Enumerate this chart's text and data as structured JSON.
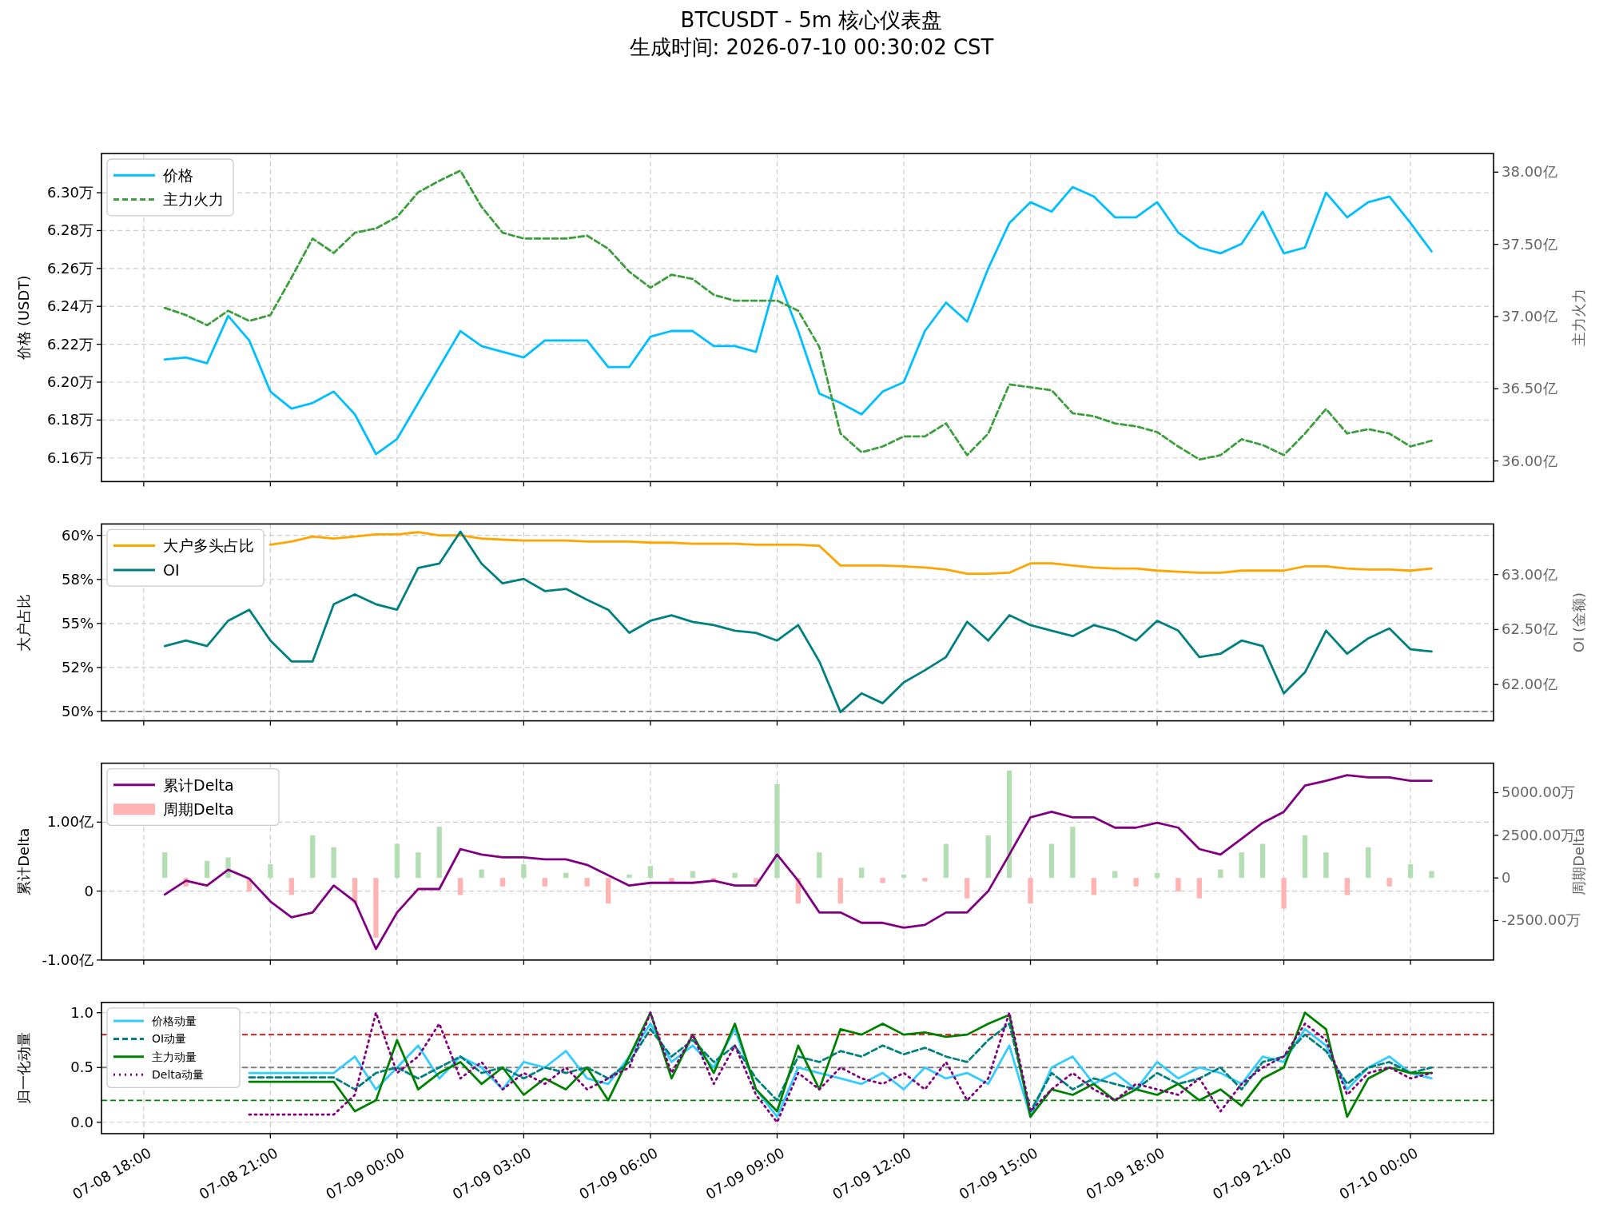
{
  "chart_data": [
    {
      "type": "line",
      "title": "BTCUSDT - 5m 核心仪表盘",
      "subtitle": "生成时间: 2026-07-10 00:30:02 CST",
      "x": [
        "2026-07-08T18:30",
        "2026-07-08T19:00",
        "2026-07-08T19:30",
        "2026-07-08T20:00",
        "2026-07-08T20:30",
        "2026-07-08T21:00",
        "2026-07-08T21:30",
        "2026-07-08T22:00",
        "2026-07-08T22:30",
        "2026-07-08T23:00",
        "2026-07-08T23:30",
        "2026-07-09T00:00",
        "2026-07-09T00:30",
        "2026-07-09T01:00",
        "2026-07-09T01:30",
        "2026-07-09T02:00",
        "2026-07-09T02:30",
        "2026-07-09T03:00",
        "2026-07-09T03:30",
        "2026-07-09T04:00",
        "2026-07-09T04:30",
        "2026-07-09T05:00",
        "2026-07-09T05:30",
        "2026-07-09T06:00",
        "2026-07-09T06:30",
        "2026-07-09T07:00",
        "2026-07-09T07:30",
        "2026-07-09T08:00",
        "2026-07-09T08:30",
        "2026-07-09T09:00",
        "2026-07-09T09:30",
        "2026-07-09T10:00",
        "2026-07-09T10:30",
        "2026-07-09T11:00",
        "2026-07-09T11:30",
        "2026-07-09T12:00",
        "2026-07-09T12:30",
        "2026-07-09T13:00",
        "2026-07-09T13:30",
        "2026-07-09T14:00",
        "2026-07-09T14:30",
        "2026-07-09T15:00",
        "2026-07-09T15:30",
        "2026-07-09T16:00",
        "2026-07-09T16:30",
        "2026-07-09T17:00",
        "2026-07-09T17:30",
        "2026-07-09T18:00",
        "2026-07-09T18:30",
        "2026-07-09T19:00",
        "2026-07-09T19:30",
        "2026-07-09T20:00",
        "2026-07-09T20:30",
        "2026-07-09T21:00",
        "2026-07-09T21:30",
        "2026-07-09T22:00",
        "2026-07-09T22:30",
        "2026-07-09T23:00",
        "2026-07-09T23:30",
        "2026-07-10T00:00",
        "2026-07-10T00:30"
      ],
      "xlim": [
        "2026-07-08T17:00",
        "2026-07-10T01:58"
      ],
      "xticks": [
        {
          "value": "2026-07-08T18:00",
          "label": null
        },
        {
          "value": "2026-07-08T21:00",
          "label": null
        },
        {
          "value": "2026-07-09T00:00",
          "label": null
        },
        {
          "value": "2026-07-09T03:00",
          "label": null
        },
        {
          "value": "2026-07-09T06:00",
          "label": null
        },
        {
          "value": "2026-07-09T09:00",
          "label": null
        },
        {
          "value": "2026-07-09T12:00",
          "label": null
        },
        {
          "value": "2026-07-09T15:00",
          "label": null
        },
        {
          "value": "2026-07-09T18:00",
          "label": null
        },
        {
          "value": "2026-07-09T21:00",
          "label": null
        },
        {
          "value": "2026-07-10T00:00",
          "label": null
        }
      ],
      "ylabel": "价格 (USDT)",
      "y2label": "主力火力",
      "ylim": [
        6.1475,
        6.3207
      ],
      "yticks": [
        {
          "value": 6.16,
          "label": "6.16万"
        },
        {
          "value": 6.18,
          "label": "6.18万"
        },
        {
          "value": 6.2,
          "label": "6.20万"
        },
        {
          "value": 6.22,
          "label": "6.22万"
        },
        {
          "value": 6.24,
          "label": "6.24万"
        },
        {
          "value": 6.26,
          "label": "6.26万"
        },
        {
          "value": 6.28,
          "label": "6.28万"
        },
        {
          "value": 6.3,
          "label": "6.30万"
        }
      ],
      "y2lim": [
        35.857,
        38.129
      ],
      "y2ticks": [
        {
          "value": 36,
          "label": "36.00亿"
        },
        {
          "value": 36.5,
          "label": "36.50亿"
        },
        {
          "value": 37,
          "label": "37.00亿"
        },
        {
          "value": 37.5,
          "label": "37.50亿"
        },
        {
          "value": 38,
          "label": "38.00亿"
        }
      ],
      "grid": true,
      "legend": "top left",
      "tick_labels": "y",
      "series": [
        {
          "name": "价格",
          "color": "#00bfff",
          "values": [
            6.212,
            6.213,
            6.21,
            6.235,
            6.222,
            6.195,
            6.186,
            6.189,
            6.195,
            6.183,
            6.162,
            6.17,
            6.189,
            6.208,
            6.227,
            6.219,
            6.216,
            6.213,
            6.222,
            6.222,
            6.222,
            6.208,
            6.208,
            6.224,
            6.227,
            6.227,
            6.219,
            6.219,
            6.216,
            6.256,
            6.227,
            6.194,
            6.189,
            6.183,
            6.195,
            6.2,
            6.227,
            6.242,
            6.232,
            6.26,
            6.284,
            6.295,
            6.29,
            6.303,
            6.298,
            6.287,
            6.287,
            6.295,
            6.279,
            6.271,
            6.268,
            6.273,
            6.29,
            6.268,
            6.271,
            6.3,
            6.287,
            6.295,
            6.298,
            6.284,
            6.269
          ]
        },
        {
          "name": "主力火力",
          "color": "#3c9e3c",
          "axis": "y2",
          "line_style": "dashed",
          "values": [
            37.06,
            37.01,
            36.94,
            37.04,
            36.97,
            37.01,
            37.27,
            37.54,
            37.44,
            37.58,
            37.61,
            37.69,
            37.86,
            37.94,
            38.01,
            37.76,
            37.58,
            37.54,
            37.54,
            37.54,
            37.56,
            37.47,
            37.31,
            37.2,
            37.29,
            37.26,
            37.15,
            37.11,
            37.11,
            37.11,
            37.04,
            36.79,
            36.19,
            36.06,
            36.1,
            36.17,
            36.17,
            36.26,
            36.04,
            36.19,
            36.53,
            36.51,
            36.49,
            36.33,
            36.31,
            36.26,
            36.24,
            36.2,
            36.1,
            36.01,
            36.04,
            36.15,
            36.11,
            36.04,
            36.19,
            36.36,
            36.19,
            36.22,
            36.19,
            36.1,
            36.14
          ]
        }
      ]
    },
    {
      "type": "line",
      "x": [
        "2026-07-08T18:30",
        "2026-07-08T19:00",
        "2026-07-08T19:30",
        "2026-07-08T20:00",
        "2026-07-08T20:30",
        "2026-07-08T21:00",
        "2026-07-08T21:30",
        "2026-07-08T22:00",
        "2026-07-08T22:30",
        "2026-07-08T23:00",
        "2026-07-08T23:30",
        "2026-07-09T00:00",
        "2026-07-09T00:30",
        "2026-07-09T01:00",
        "2026-07-09T01:30",
        "2026-07-09T02:00",
        "2026-07-09T02:30",
        "2026-07-09T03:00",
        "2026-07-09T03:30",
        "2026-07-09T04:00",
        "2026-07-09T04:30",
        "2026-07-09T05:00",
        "2026-07-09T05:30",
        "2026-07-09T06:00",
        "2026-07-09T06:30",
        "2026-07-09T07:00",
        "2026-07-09T07:30",
        "2026-07-09T08:00",
        "2026-07-09T08:30",
        "2026-07-09T09:00",
        "2026-07-09T09:30",
        "2026-07-09T10:00",
        "2026-07-09T10:30",
        "2026-07-09T11:00",
        "2026-07-09T11:30",
        "2026-07-09T12:00",
        "2026-07-09T12:30",
        "2026-07-09T13:00",
        "2026-07-09T13:30",
        "2026-07-09T14:00",
        "2026-07-09T14:30",
        "2026-07-09T15:00",
        "2026-07-09T15:30",
        "2026-07-09T16:00",
        "2026-07-09T16:30",
        "2026-07-09T17:00",
        "2026-07-09T17:30",
        "2026-07-09T18:00",
        "2026-07-09T18:30",
        "2026-07-09T19:00",
        "2026-07-09T19:30",
        "2026-07-09T20:00",
        "2026-07-09T20:30",
        "2026-07-09T21:00",
        "2026-07-09T21:30",
        "2026-07-09T22:00",
        "2026-07-09T22:30",
        "2026-07-09T23:00",
        "2026-07-09T23:30",
        "2026-07-10T00:00",
        "2026-07-10T00:30"
      ],
      "xlim": [
        "2026-07-08T17:00",
        "2026-07-10T01:58"
      ],
      "xticks": [
        {
          "value": "2026-07-08T18:00",
          "label": null
        },
        {
          "value": "2026-07-08T21:00",
          "label": null
        },
        {
          "value": "2026-07-09T00:00",
          "label": null
        },
        {
          "value": "2026-07-09T03:00",
          "label": null
        },
        {
          "value": "2026-07-09T06:00",
          "label": null
        },
        {
          "value": "2026-07-09T09:00",
          "label": null
        },
        {
          "value": "2026-07-09T12:00",
          "label": null
        },
        {
          "value": "2026-07-09T15:00",
          "label": null
        },
        {
          "value": "2026-07-09T18:00",
          "label": null
        },
        {
          "value": "2026-07-09T21:00",
          "label": null
        },
        {
          "value": "2026-07-10T00:00",
          "label": null
        }
      ],
      "ylabel": "大户占比",
      "y2label": "OI (金额)",
      "ylim": [
        49.47,
        60.65
      ],
      "yticks": [
        {
          "value": 50,
          "label": "50%"
        },
        {
          "value": 52.5,
          "label": "52%"
        },
        {
          "value": 55,
          "label": "55%"
        },
        {
          "value": 57.5,
          "label": "58%"
        },
        {
          "value": 60,
          "label": "60%"
        }
      ],
      "y2lim": [
        61.67,
        63.46
      ],
      "y2ticks": [
        {
          "value": 62,
          "label": "62.00亿"
        },
        {
          "value": 62.5,
          "label": "62.50亿"
        },
        {
          "value": 63,
          "label": "63.00亿"
        }
      ],
      "grid": true,
      "legend": "top left",
      "tick_labels": "y",
      "ref_lines": [
        {
          "axis": "y",
          "value": 50,
          "color": "#808080",
          "line_style": "dashed"
        }
      ],
      "series": [
        {
          "name": "大户多头占比",
          "color": "#ffa500",
          "values": [
            null,
            null,
            null,
            null,
            null,
            59.47,
            59.65,
            59.94,
            59.82,
            59.94,
            60.06,
            60.06,
            60.18,
            60.0,
            60.0,
            59.82,
            59.76,
            59.71,
            59.71,
            59.71,
            59.65,
            59.65,
            59.65,
            59.59,
            59.59,
            59.53,
            59.53,
            59.53,
            59.47,
            59.47,
            59.47,
            59.41,
            58.29,
            58.29,
            58.29,
            58.24,
            58.18,
            58.06,
            57.82,
            57.82,
            57.88,
            58.41,
            58.41,
            58.29,
            58.18,
            58.12,
            58.12,
            58.0,
            57.94,
            57.88,
            57.88,
            58.0,
            58.0,
            58.0,
            58.24,
            58.24,
            58.12,
            58.06,
            58.06,
            58.0,
            58.12
          ]
        },
        {
          "name": "OI",
          "color": "#008080",
          "axis": "y2",
          "values": [
            62.35,
            62.4,
            62.35,
            62.58,
            62.68,
            62.4,
            62.21,
            62.21,
            62.73,
            62.82,
            62.73,
            62.68,
            63.06,
            63.1,
            63.39,
            63.1,
            62.92,
            62.96,
            62.85,
            62.87,
            62.77,
            62.68,
            62.47,
            62.58,
            62.63,
            62.57,
            62.54,
            62.49,
            62.47,
            62.4,
            62.54,
            62.21,
            61.75,
            61.92,
            61.83,
            62.02,
            62.13,
            62.25,
            62.57,
            62.4,
            62.63,
            62.54,
            62.49,
            62.44,
            62.54,
            62.49,
            62.4,
            62.58,
            62.49,
            62.25,
            62.28,
            62.4,
            62.35,
            61.92,
            62.11,
            62.49,
            62.28,
            62.42,
            62.51,
            62.32,
            62.3
          ]
        }
      ]
    },
    {
      "type": "line",
      "x": [
        "2026-07-08T18:30",
        "2026-07-08T19:00",
        "2026-07-08T19:30",
        "2026-07-08T20:00",
        "2026-07-08T20:30",
        "2026-07-08T21:00",
        "2026-07-08T21:30",
        "2026-07-08T22:00",
        "2026-07-08T22:30",
        "2026-07-08T23:00",
        "2026-07-08T23:30",
        "2026-07-09T00:00",
        "2026-07-09T00:30",
        "2026-07-09T01:00",
        "2026-07-09T01:30",
        "2026-07-09T02:00",
        "2026-07-09T02:30",
        "2026-07-09T03:00",
        "2026-07-09T03:30",
        "2026-07-09T04:00",
        "2026-07-09T04:30",
        "2026-07-09T05:00",
        "2026-07-09T05:30",
        "2026-07-09T06:00",
        "2026-07-09T06:30",
        "2026-07-09T07:00",
        "2026-07-09T07:30",
        "2026-07-09T08:00",
        "2026-07-09T08:30",
        "2026-07-09T09:00",
        "2026-07-09T09:30",
        "2026-07-09T10:00",
        "2026-07-09T10:30",
        "2026-07-09T11:00",
        "2026-07-09T11:30",
        "2026-07-09T12:00",
        "2026-07-09T12:30",
        "2026-07-09T13:00",
        "2026-07-09T13:30",
        "2026-07-09T14:00",
        "2026-07-09T14:30",
        "2026-07-09T15:00",
        "2026-07-09T15:30",
        "2026-07-09T16:00",
        "2026-07-09T16:30",
        "2026-07-09T17:00",
        "2026-07-09T17:30",
        "2026-07-09T18:00",
        "2026-07-09T18:30",
        "2026-07-09T19:00",
        "2026-07-09T19:30",
        "2026-07-09T20:00",
        "2026-07-09T20:30",
        "2026-07-09T21:00",
        "2026-07-09T21:30",
        "2026-07-09T22:00",
        "2026-07-09T22:30",
        "2026-07-09T23:00",
        "2026-07-09T23:30",
        "2026-07-10T00:00",
        "2026-07-10T00:30"
      ],
      "xlim": [
        "2026-07-08T17:00",
        "2026-07-10T01:58"
      ],
      "xticks": [
        {
          "value": "2026-07-08T18:00",
          "label": null
        },
        {
          "value": "2026-07-08T21:00",
          "label": null
        },
        {
          "value": "2026-07-09T00:00",
          "label": null
        },
        {
          "value": "2026-07-09T03:00",
          "label": null
        },
        {
          "value": "2026-07-09T06:00",
          "label": null
        },
        {
          "value": "2026-07-09T09:00",
          "label": null
        },
        {
          "value": "2026-07-09T12:00",
          "label": null
        },
        {
          "value": "2026-07-09T15:00",
          "label": null
        },
        {
          "value": "2026-07-09T18:00",
          "label": null
        },
        {
          "value": "2026-07-09T21:00",
          "label": null
        },
        {
          "value": "2026-07-10T00:00",
          "label": null
        }
      ],
      "ylabel": "累计Delta",
      "y2label": "周期Delta",
      "ylim": [
        -1.0,
        1.855
      ],
      "yticks": [
        {
          "value": -1,
          "label": "-1.00亿"
        },
        0,
        {
          "value": 1,
          "label": "1.00亿"
        }
      ],
      "y2lim": [
        -4815,
        6728
      ],
      "y2ticks": [
        {
          "value": -2500,
          "label": "-2500.00万"
        },
        0,
        {
          "value": 2500,
          "label": "2500.00万"
        },
        {
          "value": 5000,
          "label": "5000.00万"
        }
      ],
      "grid": true,
      "legend": "top left",
      "tick_labels": "y",
      "series": [
        {
          "name": "累计Delta",
          "color": "#800080",
          "values": [
            -0.05,
            0.15,
            0.08,
            0.31,
            0.18,
            -0.15,
            -0.38,
            -0.31,
            0.08,
            -0.15,
            -0.84,
            -0.31,
            0.03,
            0.03,
            0.61,
            0.53,
            0.49,
            0.49,
            0.46,
            0.46,
            0.38,
            0.23,
            0.08,
            0.12,
            0.12,
            0.12,
            0.15,
            0.08,
            0.08,
            0.53,
            0.15,
            -0.31,
            -0.31,
            -0.46,
            -0.46,
            -0.53,
            -0.49,
            -0.31,
            -0.31,
            0.0,
            0.53,
            1.07,
            1.15,
            1.07,
            1.07,
            0.92,
            0.92,
            0.99,
            0.92,
            0.61,
            0.53,
            0.76,
            0.99,
            1.15,
            1.53,
            1.6,
            1.68,
            1.65,
            1.65,
            1.6,
            1.6
          ]
        },
        {
          "name": "周期Delta",
          "type": "bar",
          "axis": "y2",
          "color": "#ffb3b3",
          "values": [
            1500,
            -500,
            1000,
            1200,
            -800,
            800,
            -1000,
            2500,
            1800,
            -1500,
            -3500,
            2000,
            1500,
            3000,
            -1000,
            500,
            -500,
            800,
            -500,
            300,
            -500,
            -1500,
            200,
            700,
            -300,
            400,
            -200,
            300,
            -300,
            5500,
            -1500,
            1500,
            -1500,
            600,
            -300,
            200,
            -200,
            2000,
            -1200,
            2500,
            6300,
            -1500,
            2000,
            3000,
            -1000,
            400,
            -500,
            300,
            -800,
            -1200,
            500,
            1500,
            2000,
            -1800,
            2500,
            1500,
            -1000,
            1800,
            -500,
            800,
            400
          ],
          "colors": [
            "#b3deb3",
            "#ffb3b3",
            "#b3deb3",
            "#b3deb3",
            "#ffb3b3",
            "#b3deb3",
            "#ffb3b3",
            "#b3deb3",
            "#b3deb3",
            "#ffb3b3",
            "#ffb3b3",
            "#b3deb3",
            "#b3deb3",
            "#b3deb3",
            "#ffb3b3",
            "#b3deb3",
            "#ffb3b3",
            "#b3deb3",
            "#ffb3b3",
            "#b3deb3",
            "#ffb3b3",
            "#ffb3b3",
            "#b3deb3",
            "#b3deb3",
            "#ffb3b3",
            "#b3deb3",
            "#ffb3b3",
            "#b3deb3",
            "#ffb3b3",
            "#b3deb3",
            "#ffb3b3",
            "#b3deb3",
            "#ffb3b3",
            "#b3deb3",
            "#ffb3b3",
            "#b3deb3",
            "#ffb3b3",
            "#b3deb3",
            "#ffb3b3",
            "#b3deb3",
            "#b3deb3",
            "#ffb3b3",
            "#b3deb3",
            "#b3deb3",
            "#ffb3b3",
            "#b3deb3",
            "#ffb3b3",
            "#b3deb3",
            "#ffb3b3",
            "#ffb3b3",
            "#b3deb3",
            "#b3deb3",
            "#b3deb3",
            "#ffb3b3",
            "#b3deb3",
            "#b3deb3",
            "#ffb3b3",
            "#b3deb3",
            "#ffb3b3",
            "#b3deb3",
            "#b3deb3"
          ]
        }
      ]
    },
    {
      "type": "line",
      "xlim": [
        "2026-07-08T17:00",
        "2026-07-10T01:58"
      ],
      "xticks": [
        {
          "value": "2026-07-08T18:00",
          "label": "07-08 18:00"
        },
        {
          "value": "2026-07-08T21:00",
          "label": "07-08 21:00"
        },
        {
          "value": "2026-07-09T00:00",
          "label": "07-09 00:00"
        },
        {
          "value": "2026-07-09T03:00",
          "label": "07-09 03:00"
        },
        {
          "value": "2026-07-09T06:00",
          "label": "07-09 06:00"
        },
        {
          "value": "2026-07-09T09:00",
          "label": "07-09 09:00"
        },
        {
          "value": "2026-07-09T12:00",
          "label": "07-09 12:00"
        },
        {
          "value": "2026-07-09T15:00",
          "label": "07-09 15:00"
        },
        {
          "value": "2026-07-09T18:00",
          "label": "07-09 18:00"
        },
        {
          "value": "2026-07-09T21:00",
          "label": "07-09 21:00"
        },
        {
          "value": "2026-07-10T00:00",
          "label": "07-10 00:00"
        }
      ],
      "ylabel": "归一化动量",
      "ylim": [
        -0.104,
        1.094
      ],
      "yticks": [
        {
          "value": 0,
          "label": "0.0"
        },
        {
          "value": 0.5,
          "label": "0.5"
        },
        {
          "value": 1,
          "label": "1.0"
        }
      ],
      "grid": true,
      "legend": "top left",
      "ref_lines": [
        {
          "axis": "y",
          "value": 0.8,
          "color": "#ff0000",
          "line_style": "dashed"
        },
        {
          "axis": "y",
          "value": 0.5,
          "color": "#808080",
          "line_style": "dashed"
        },
        {
          "axis": "y",
          "value": 0.2,
          "color": "#008000",
          "line_style": "dashed"
        }
      ],
      "series": [
        {
          "name": "价格动量",
          "color": "#33ccff",
          "x": [
            "2026-07-08T20:30",
            "2026-07-08T21:00",
            "2026-07-08T21:30",
            "2026-07-08T22:00",
            "2026-07-08T22:30",
            "2026-07-08T23:00",
            "2026-07-08T23:30",
            "2026-07-09T00:00",
            "2026-07-09T00:30",
            "2026-07-09T01:00",
            "2026-07-09T01:30",
            "2026-07-09T02:00",
            "2026-07-09T02:30",
            "2026-07-09T03:00",
            "2026-07-09T03:30",
            "2026-07-09T04:00",
            "2026-07-09T04:30",
            "2026-07-09T05:00",
            "2026-07-09T05:30",
            "2026-07-09T06:00",
            "2026-07-09T06:30",
            "2026-07-09T07:00",
            "2026-07-09T07:30",
            "2026-07-09T08:00",
            "2026-07-09T08:30",
            "2026-07-09T09:00",
            "2026-07-09T09:30",
            "2026-07-09T10:00",
            "2026-07-09T10:30",
            "2026-07-09T11:00",
            "2026-07-09T11:30",
            "2026-07-09T12:00",
            "2026-07-09T12:30",
            "2026-07-09T13:00",
            "2026-07-09T13:30",
            "2026-07-09T14:00",
            "2026-07-09T14:30",
            "2026-07-09T15:00",
            "2026-07-09T15:30",
            "2026-07-09T16:00",
            "2026-07-09T16:30",
            "2026-07-09T17:00",
            "2026-07-09T17:30",
            "2026-07-09T18:00",
            "2026-07-09T18:30",
            "2026-07-09T19:00",
            "2026-07-09T19:30",
            "2026-07-09T20:00",
            "2026-07-09T20:30",
            "2026-07-09T21:00",
            "2026-07-09T21:30",
            "2026-07-09T22:00",
            "2026-07-09T22:30",
            "2026-07-09T23:00",
            "2026-07-09T23:30",
            "2026-07-10T00:00",
            "2026-07-10T00:30"
          ],
          "values": [
            0.45,
            0.45,
            0.45,
            0.45,
            0.45,
            0.6,
            0.3,
            0.5,
            0.7,
            0.4,
            0.6,
            0.5,
            0.3,
            0.55,
            0.5,
            0.65,
            0.4,
            0.35,
            0.6,
            0.9,
            0.55,
            0.7,
            0.5,
            0.85,
            0.3,
            0.05,
            0.5,
            0.45,
            0.4,
            0.35,
            0.45,
            0.3,
            0.5,
            0.4,
            0.45,
            0.35,
            0.7,
            0.05,
            0.5,
            0.6,
            0.35,
            0.45,
            0.3,
            0.55,
            0.4,
            0.5,
            0.45,
            0.35,
            0.6,
            0.55,
            0.85,
            0.7,
            0.3,
            0.5,
            0.6,
            0.45,
            0.4
          ]
        },
        {
          "name": "OI动量",
          "color": "#008080",
          "line_style": "dashed",
          "x": [
            "2026-07-08T20:30",
            "2026-07-08T21:00",
            "2026-07-08T21:30",
            "2026-07-08T22:00",
            "2026-07-08T22:30",
            "2026-07-08T23:00",
            "2026-07-08T23:30",
            "2026-07-09T00:00",
            "2026-07-09T00:30",
            "2026-07-09T01:00",
            "2026-07-09T01:30",
            "2026-07-09T02:00",
            "2026-07-09T02:30",
            "2026-07-09T03:00",
            "2026-07-09T03:30",
            "2026-07-09T04:00",
            "2026-07-09T04:30",
            "2026-07-09T05:00",
            "2026-07-09T05:30",
            "2026-07-09T06:00",
            "2026-07-09T06:30",
            "2026-07-09T07:00",
            "2026-07-09T07:30",
            "2026-07-09T08:00",
            "2026-07-09T08:30",
            "2026-07-09T09:00",
            "2026-07-09T09:30",
            "2026-07-09T10:00",
            "2026-07-09T10:30",
            "2026-07-09T11:00",
            "2026-07-09T11:30",
            "2026-07-09T12:00",
            "2026-07-09T12:30",
            "2026-07-09T13:00",
            "2026-07-09T13:30",
            "2026-07-09T14:00",
            "2026-07-09T14:30",
            "2026-07-09T15:00",
            "2026-07-09T15:30",
            "2026-07-09T16:00",
            "2026-07-09T16:30",
            "2026-07-09T17:00",
            "2026-07-09T17:30",
            "2026-07-09T18:00",
            "2026-07-09T18:30",
            "2026-07-09T19:00",
            "2026-07-09T19:30",
            "2026-07-09T20:00",
            "2026-07-09T20:30",
            "2026-07-09T21:00",
            "2026-07-09T21:30",
            "2026-07-09T22:00",
            "2026-07-09T22:30",
            "2026-07-09T23:00",
            "2026-07-09T23:30",
            "2026-07-10T00:00",
            "2026-07-10T00:30"
          ],
          "values": [
            0.41,
            0.41,
            0.41,
            0.41,
            0.41,
            0.3,
            0.45,
            0.5,
            0.4,
            0.5,
            0.6,
            0.45,
            0.5,
            0.4,
            0.5,
            0.45,
            0.5,
            0.4,
            0.55,
            0.85,
            0.6,
            0.75,
            0.55,
            0.7,
            0.4,
            0.2,
            0.6,
            0.55,
            0.65,
            0.6,
            0.7,
            0.62,
            0.68,
            0.6,
            0.55,
            0.75,
            0.9,
            0.1,
            0.45,
            0.3,
            0.4,
            0.35,
            0.3,
            0.45,
            0.35,
            0.4,
            0.5,
            0.3,
            0.55,
            0.6,
            0.8,
            0.65,
            0.35,
            0.5,
            0.55,
            0.45,
            0.5
          ]
        },
        {
          "name": "主力动量",
          "color": "#008000",
          "x": [
            "2026-07-08T20:30",
            "2026-07-08T21:00",
            "2026-07-08T21:30",
            "2026-07-08T22:00",
            "2026-07-08T22:30",
            "2026-07-08T23:00",
            "2026-07-08T23:30",
            "2026-07-09T00:00",
            "2026-07-09T00:30",
            "2026-07-09T01:00",
            "2026-07-09T01:30",
            "2026-07-09T02:00",
            "2026-07-09T02:30",
            "2026-07-09T03:00",
            "2026-07-09T03:30",
            "2026-07-09T04:00",
            "2026-07-09T04:30",
            "2026-07-09T05:00",
            "2026-07-09T05:30",
            "2026-07-09T06:00",
            "2026-07-09T06:30",
            "2026-07-09T07:00",
            "2026-07-09T07:30",
            "2026-07-09T08:00",
            "2026-07-09T08:30",
            "2026-07-09T09:00",
            "2026-07-09T09:30",
            "2026-07-09T10:00",
            "2026-07-09T10:30",
            "2026-07-09T11:00",
            "2026-07-09T11:30",
            "2026-07-09T12:00",
            "2026-07-09T12:30",
            "2026-07-09T13:00",
            "2026-07-09T13:30",
            "2026-07-09T14:00",
            "2026-07-09T14:30",
            "2026-07-09T15:00",
            "2026-07-09T15:30",
            "2026-07-09T16:00",
            "2026-07-09T16:30",
            "2026-07-09T17:00",
            "2026-07-09T17:30",
            "2026-07-09T18:00",
            "2026-07-09T18:30",
            "2026-07-09T19:00",
            "2026-07-09T19:30",
            "2026-07-09T20:00",
            "2026-07-09T20:30",
            "2026-07-09T21:00",
            "2026-07-09T21:30",
            "2026-07-09T22:00",
            "2026-07-09T22:30",
            "2026-07-09T23:00",
            "2026-07-09T23:30",
            "2026-07-10T00:00",
            "2026-07-10T00:30"
          ],
          "values": [
            0.37,
            0.37,
            0.37,
            0.37,
            0.37,
            0.1,
            0.2,
            0.75,
            0.3,
            0.45,
            0.55,
            0.35,
            0.5,
            0.25,
            0.4,
            0.3,
            0.5,
            0.2,
            0.6,
            1.0,
            0.4,
            0.8,
            0.45,
            0.9,
            0.3,
            0.1,
            0.7,
            0.3,
            0.85,
            0.8,
            0.9,
            0.8,
            0.82,
            0.78,
            0.8,
            0.9,
            0.98,
            0.05,
            0.3,
            0.25,
            0.35,
            0.2,
            0.3,
            0.25,
            0.35,
            0.2,
            0.3,
            0.15,
            0.4,
            0.5,
            1.0,
            0.85,
            0.05,
            0.4,
            0.5,
            0.45,
            0.45
          ]
        },
        {
          "name": "Delta动量",
          "color": "#800080",
          "line_style": "dotted",
          "x": [
            "2026-07-08T20:30",
            "2026-07-08T21:00",
            "2026-07-08T21:30",
            "2026-07-08T22:00",
            "2026-07-08T22:30",
            "2026-07-08T23:00",
            "2026-07-08T23:30",
            "2026-07-09T00:00",
            "2026-07-09T00:30",
            "2026-07-09T01:00",
            "2026-07-09T01:30",
            "2026-07-09T02:00",
            "2026-07-09T02:30",
            "2026-07-09T03:00",
            "2026-07-09T03:30",
            "2026-07-09T04:00",
            "2026-07-09T04:30",
            "2026-07-09T05:00",
            "2026-07-09T05:30",
            "2026-07-09T06:00",
            "2026-07-09T06:30",
            "2026-07-09T07:00",
            "2026-07-09T07:30",
            "2026-07-09T08:00",
            "2026-07-09T08:30",
            "2026-07-09T09:00",
            "2026-07-09T09:30",
            "2026-07-09T10:00",
            "2026-07-09T10:30",
            "2026-07-09T11:00",
            "2026-07-09T11:30",
            "2026-07-09T12:00",
            "2026-07-09T12:30",
            "2026-07-09T13:00",
            "2026-07-09T13:30",
            "2026-07-09T14:00",
            "2026-07-09T14:30",
            "2026-07-09T15:00",
            "2026-07-09T15:30",
            "2026-07-09T16:00",
            "2026-07-09T16:30",
            "2026-07-09T17:00",
            "2026-07-09T17:30",
            "2026-07-09T18:00",
            "2026-07-09T18:30",
            "2026-07-09T19:00",
            "2026-07-09T19:30",
            "2026-07-09T20:00",
            "2026-07-09T20:30",
            "2026-07-09T21:00",
            "2026-07-09T21:30",
            "2026-07-09T22:00",
            "2026-07-09T22:30",
            "2026-07-09T23:00",
            "2026-07-09T23:30",
            "2026-07-10T00:00",
            "2026-07-10T00:30"
          ],
          "values": [
            0.07,
            0.07,
            0.07,
            0.07,
            0.07,
            0.25,
            1.0,
            0.45,
            0.6,
            0.9,
            0.4,
            0.55,
            0.3,
            0.45,
            0.35,
            0.5,
            0.3,
            0.4,
            0.5,
            1.0,
            0.45,
            0.8,
            0.35,
            0.7,
            0.25,
            0.0,
            0.45,
            0.3,
            0.5,
            0.4,
            0.35,
            0.45,
            0.3,
            0.55,
            0.2,
            0.4,
            1.0,
            0.1,
            0.3,
            0.45,
            0.3,
            0.2,
            0.35,
            0.3,
            0.25,
            0.4,
            0.1,
            0.35,
            0.5,
            0.6,
            0.9,
            0.75,
            0.25,
            0.45,
            0.5,
            0.4,
            0.45
          ]
        }
      ]
    }
  ]
}
